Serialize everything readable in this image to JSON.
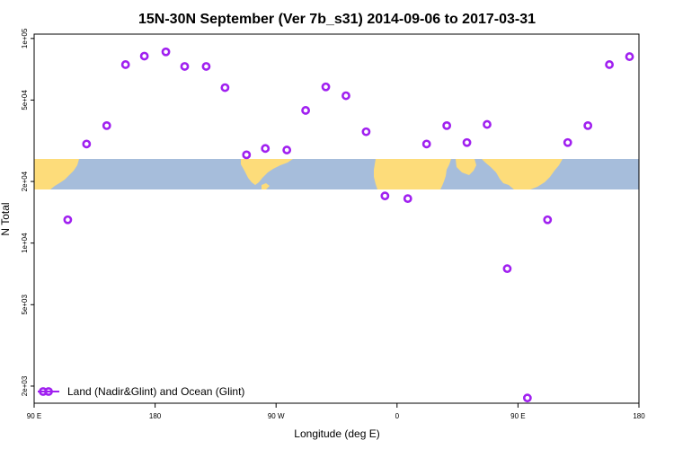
{
  "chart_data": {
    "type": "scatter",
    "title": "15N-30N September (Ver 7b_s31)   2014-09-06 to 2017-03-31",
    "xlabel": "Longitude (deg E)",
    "ylabel": "N Total",
    "x_scale": "linear",
    "y_scale": "log",
    "xlim": [
      90,
      540
    ],
    "ylim": [
      1650,
      105000
    ],
    "x_ticks": [
      {
        "value": 90,
        "label": "90 E"
      },
      {
        "value": 180,
        "label": "180"
      },
      {
        "value": 270,
        "label": "90 W"
      },
      {
        "value": 360,
        "label": "0"
      },
      {
        "value": 450,
        "label": "90 E"
      },
      {
        "value": 540,
        "label": "180"
      }
    ],
    "y_ticks": [
      {
        "value": 2000,
        "label": "2e+03"
      },
      {
        "value": 5000,
        "label": "5e+03"
      },
      {
        "value": 10000,
        "label": "1e+04"
      },
      {
        "value": 20000,
        "label": "2e+04"
      },
      {
        "value": 50000,
        "label": "5e+04"
      },
      {
        "value": 100000,
        "label": "1e+05"
      }
    ],
    "series": [
      {
        "name": "Land (Nadir&Glint) and Ocean (Glint)",
        "color": "#a020f0",
        "marker": "open-circle",
        "points": [
          {
            "x": 115,
            "y": 13000
          },
          {
            "x": 129,
            "y": 30500
          },
          {
            "x": 144,
            "y": 37500
          },
          {
            "x": 158,
            "y": 74500
          },
          {
            "x": 172,
            "y": 82000
          },
          {
            "x": 188,
            "y": 86000
          },
          {
            "x": 202,
            "y": 73000
          },
          {
            "x": 218,
            "y": 73000
          },
          {
            "x": 232,
            "y": 57500
          },
          {
            "x": 248,
            "y": 27000
          },
          {
            "x": 262,
            "y": 29000
          },
          {
            "x": 278,
            "y": 28500
          },
          {
            "x": 292,
            "y": 44500
          },
          {
            "x": 307,
            "y": 58000
          },
          {
            "x": 322,
            "y": 52500
          },
          {
            "x": 337,
            "y": 35000
          },
          {
            "x": 351,
            "y": 17000
          },
          {
            "x": 368,
            "y": 16500
          },
          {
            "x": 382,
            "y": 30500
          },
          {
            "x": 397,
            "y": 37500
          },
          {
            "x": 412,
            "y": 31000
          },
          {
            "x": 427,
            "y": 38000
          },
          {
            "x": 442,
            "y": 7500
          },
          {
            "x": 457,
            "y": 1750
          },
          {
            "x": 472,
            "y": 13000
          },
          {
            "x": 487,
            "y": 31000
          },
          {
            "x": 502,
            "y": 37500
          },
          {
            "x": 518,
            "y": 74500
          },
          {
            "x": 533,
            "y": 81500
          }
        ]
      }
    ],
    "legend": {
      "position": "bottom-left",
      "label": "Land (Nadir&Glint) and Ocean (Glint)"
    },
    "background_map": {
      "colors": {
        "ocean": "#a6bddb",
        "land": "#fddc7a"
      },
      "lat_range": "15N-30N"
    },
    "grid": false
  }
}
